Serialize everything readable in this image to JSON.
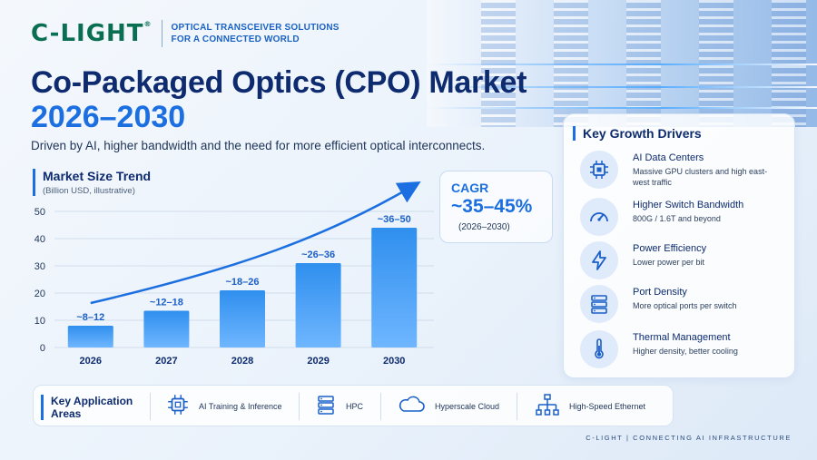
{
  "header": {
    "logo": "C-LIGHT",
    "tagline_line1": "OPTICAL TRANSCEIVER SOLUTIONS",
    "tagline_line2": "FOR A CONNECTED WORLD"
  },
  "title": "Co-Packaged Optics (CPO) Market",
  "title_years": "2026–2030",
  "lede": "Driven by AI, higher bandwidth and the need for more efficient optical interconnects.",
  "chart_data": {
    "type": "bar",
    "title": "Market Size Trend",
    "subtitle": "(Billion USD, illustrative)",
    "categories": [
      "2026",
      "2027",
      "2028",
      "2029",
      "2030"
    ],
    "values": [
      8,
      13.5,
      21,
      31,
      44
    ],
    "data_labels": [
      "~8–12",
      "~12–18",
      "~18–26",
      "~26–36",
      "~36–50"
    ],
    "yticks": [
      "0",
      "10",
      "20",
      "30",
      "40",
      "50"
    ],
    "ylim": [
      0,
      50
    ],
    "grid": true,
    "trend_arrow": true,
    "bar_color": "#2f8fee"
  },
  "cagr": {
    "label": "CAGR",
    "value": "~35–45%",
    "period": "(2026–2030)"
  },
  "drivers": {
    "heading": "Key Growth Drivers",
    "items": [
      {
        "title": "AI Data Centers",
        "desc": "Massive GPU clusters and high east-west traffic",
        "icon": "chip-icon"
      },
      {
        "title": "Higher Switch Bandwidth",
        "desc": "800G / 1.6T and beyond",
        "icon": "speedometer-icon"
      },
      {
        "title": "Power Efficiency",
        "desc": "Lower power per bit",
        "icon": "lightning-icon"
      },
      {
        "title": "Port Density",
        "desc": "More optical ports per switch",
        "icon": "server-rack-icon"
      },
      {
        "title": "Thermal Management",
        "desc": "Higher density, better cooling",
        "icon": "thermometer-icon"
      }
    ]
  },
  "apps": {
    "heading": "Key Application Areas",
    "items": [
      {
        "label": "AI Training & Inference",
        "icon": "chip-icon"
      },
      {
        "label": "HPC",
        "icon": "server-icon"
      },
      {
        "label": "Hyperscale Cloud",
        "icon": "cloud-icon"
      },
      {
        "label": "High-Speed Ethernet",
        "icon": "network-icon"
      }
    ]
  },
  "footer": "C-LIGHT  |  CONNECTING AI INFRASTRUCTURE",
  "colors": {
    "accent": "#1b6fe0",
    "navy": "#0d2b6e",
    "brand_green": "#0a6e52"
  }
}
